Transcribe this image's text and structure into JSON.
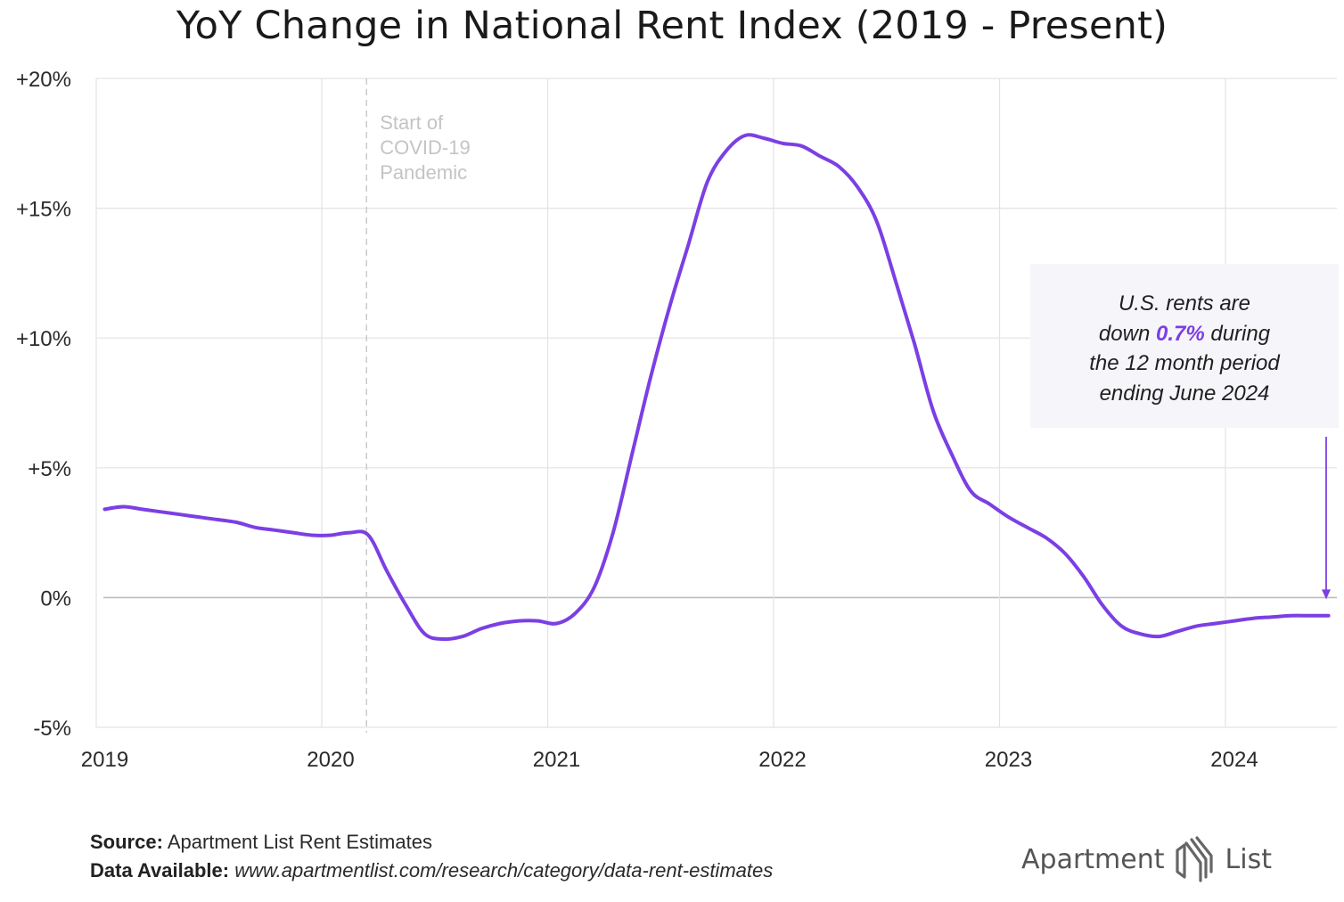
{
  "title": "YoY Change in National Rent Index (2019 - Present)",
  "colors": {
    "series": "#7b3fe4",
    "grid": "#e3e3e3",
    "zero_line": "#bdbdbd",
    "covid_line": "#c8c8c8",
    "covid_text": "#c4c4c4",
    "annotation_bg": "#f6f5f9"
  },
  "chart_data": {
    "type": "line",
    "title": "YoY Change in National Rent Index (2019 - Present)",
    "xlabel": "",
    "ylabel": "",
    "x_ticks": [
      "2019",
      "2020",
      "2021",
      "2022",
      "2023",
      "2024"
    ],
    "y_ticks": [
      "+20%",
      "+15%",
      "+10%",
      "+5%",
      "0%",
      "-5%"
    ],
    "y_tick_values": [
      20,
      15,
      10,
      5,
      0,
      -5
    ],
    "ylim": [
      -5,
      20
    ],
    "xlim": [
      "2019-01",
      "2024-07"
    ],
    "grid": true,
    "series": [
      {
        "name": "",
        "x": [
          "2019-01",
          "2019-02",
          "2019-03",
          "2019-04",
          "2019-05",
          "2019-06",
          "2019-07",
          "2019-08",
          "2019-09",
          "2019-10",
          "2019-11",
          "2019-12",
          "2020-01",
          "2020-02",
          "2020-03",
          "2020-04",
          "2020-05",
          "2020-06",
          "2020-07",
          "2020-08",
          "2020-09",
          "2020-10",
          "2020-11",
          "2020-12",
          "2021-01",
          "2021-02",
          "2021-03",
          "2021-04",
          "2021-05",
          "2021-06",
          "2021-07",
          "2021-08",
          "2021-09",
          "2021-10",
          "2021-11",
          "2021-12",
          "2022-01",
          "2022-02",
          "2022-03",
          "2022-04",
          "2022-05",
          "2022-06",
          "2022-07",
          "2022-08",
          "2022-09",
          "2022-10",
          "2022-11",
          "2022-12",
          "2023-01",
          "2023-02",
          "2023-03",
          "2023-04",
          "2023-05",
          "2023-06",
          "2023-07",
          "2023-08",
          "2023-09",
          "2023-10",
          "2023-11",
          "2023-12",
          "2024-01",
          "2024-02",
          "2024-03",
          "2024-04",
          "2024-05",
          "2024-06"
        ],
        "y": [
          3.4,
          3.5,
          3.4,
          3.3,
          3.2,
          3.1,
          3.0,
          2.9,
          2.7,
          2.6,
          2.5,
          2.4,
          2.4,
          2.5,
          2.4,
          1.0,
          -0.3,
          -1.4,
          -1.6,
          -1.5,
          -1.2,
          -1.0,
          -0.9,
          -0.9,
          -1.0,
          -0.6,
          0.4,
          2.5,
          5.5,
          8.5,
          11.2,
          13.6,
          16.0,
          17.2,
          17.8,
          17.7,
          17.5,
          17.4,
          17.0,
          16.6,
          15.8,
          14.5,
          12.2,
          9.8,
          7.2,
          5.5,
          4.1,
          3.6,
          3.1,
          2.7,
          2.3,
          1.7,
          0.8,
          -0.3,
          -1.1,
          -1.4,
          -1.5,
          -1.3,
          -1.1,
          -1.0,
          -0.9,
          -0.8,
          -0.75,
          -0.7,
          -0.7,
          -0.7
        ]
      }
    ],
    "annotations": [
      {
        "type": "vline",
        "x": "2020-03",
        "label": [
          "Start of",
          "COVID-19",
          "Pandemic"
        ]
      },
      {
        "type": "arrow",
        "x": "2024-06",
        "y": -0.7
      }
    ]
  },
  "annotation_box": {
    "line1": "U.S. rents are",
    "line2_pre": "down ",
    "line2_highlight": "0.7%",
    "line2_post": " during",
    "line3": "the 12 month period",
    "line4": "ending June 2024"
  },
  "footer": {
    "source_label": "Source:",
    "source_text": " Apartment List Rent Estimates",
    "data_label": "Data Available:",
    "data_text": " www.apartmentlist.com/research/category/data-rent-estimates"
  },
  "logo": {
    "word1": "Apartment",
    "word2": "List",
    "icon": "apartment-list-logo-icon"
  }
}
